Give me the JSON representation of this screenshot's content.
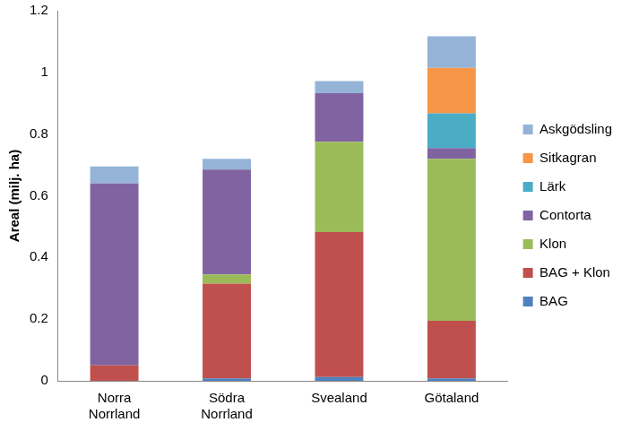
{
  "chart_data": {
    "type": "bar",
    "stacked": true,
    "grid": false,
    "legend": "right",
    "y_label": "Areal (milj. ha)",
    "categories": [
      "Norra Norrland",
      "Södra Norrland",
      "Svealand",
      "Götaland"
    ],
    "ylim": [
      0,
      1.2
    ],
    "yticks": [
      0,
      0.2,
      0.4,
      0.6,
      0.8,
      1,
      1.2
    ],
    "series": [
      {
        "name": "BAG",
        "color": "#4f81bd",
        "values": [
          0,
          0.008,
          0.012,
          0.008
        ]
      },
      {
        "name": "BAG + Klon",
        "color": "#c0504d",
        "values": [
          0.05,
          0.307,
          0.47,
          0.187
        ]
      },
      {
        "name": "Klon",
        "color": "#9bbb59",
        "values": [
          0,
          0.03,
          0.293,
          0.525
        ]
      },
      {
        "name": "Contorta",
        "color": "#8064a2",
        "values": [
          0.59,
          0.34,
          0.158,
          0.035
        ]
      },
      {
        "name": "Lärk",
        "color": "#4bacc6",
        "values": [
          0,
          0,
          0,
          0.112
        ]
      },
      {
        "name": "Sitkagran",
        "color": "#f79646",
        "values": [
          0,
          0,
          0,
          0.148
        ]
      },
      {
        "name": "Askgödsling",
        "color": "#95b3d7",
        "values": [
          0.055,
          0.035,
          0.039,
          0.102
        ]
      }
    ]
  }
}
